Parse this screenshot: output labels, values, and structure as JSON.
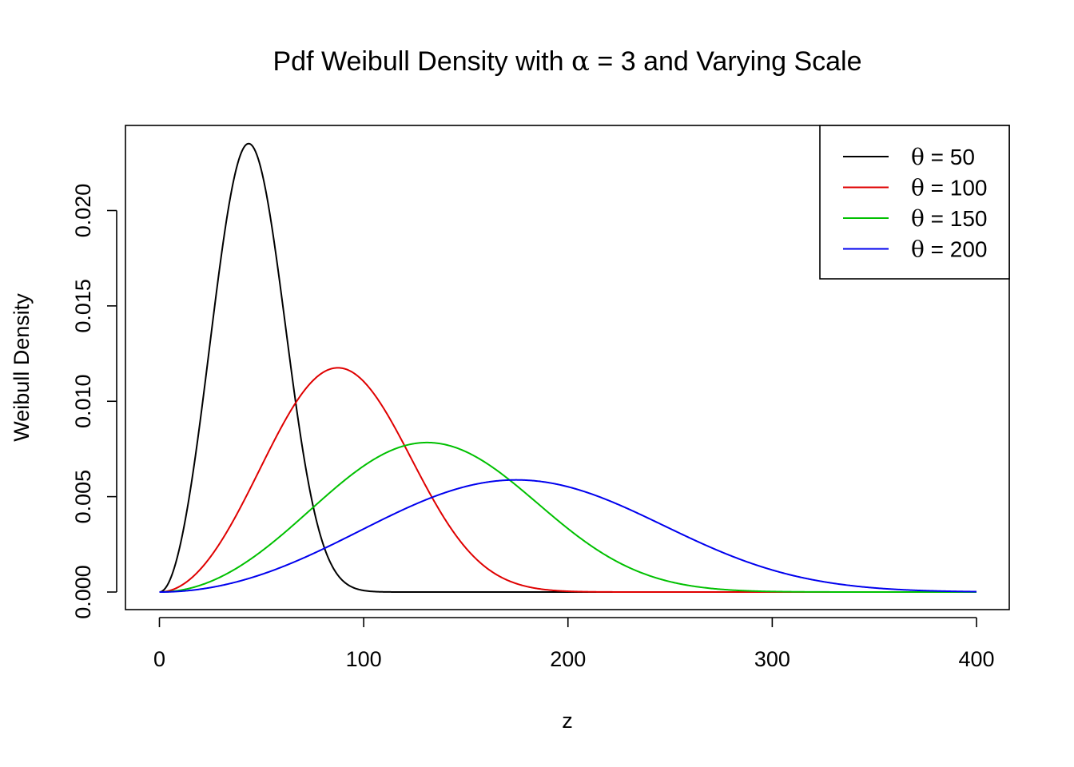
{
  "chart_data": {
    "type": "line",
    "title_prefix": "Pdf Weibull Density with ",
    "title_symbol": "α",
    "title_suffix": " = 3 and Varying Scale",
    "xlabel": "z",
    "ylabel": "Weibull Density",
    "xlim": [
      0,
      400
    ],
    "ylim": [
      0,
      0.0235
    ],
    "x_ticks": [
      0,
      100,
      200,
      300,
      400
    ],
    "x_tick_labels": [
      "0",
      "100",
      "200",
      "300",
      "400"
    ],
    "y_ticks": [
      0,
      0.005,
      0.01,
      0.015,
      0.02
    ],
    "y_tick_labels": [
      "0.000",
      "0.005",
      "0.010",
      "0.015",
      "0.020"
    ],
    "grid": false,
    "legend_position": "top-right",
    "shape_alpha": 3,
    "x_range": [
      0,
      400
    ],
    "series": [
      {
        "symbol": "θ",
        "label_suffix": " = 50",
        "scale": 50,
        "color": "#000000"
      },
      {
        "symbol": "θ",
        "label_suffix": " = 100",
        "scale": 100,
        "color": "#df0000"
      },
      {
        "symbol": "θ",
        "label_suffix": " = 150",
        "scale": 150,
        "color": "#00c000"
      },
      {
        "symbol": "θ",
        "label_suffix": " = 200",
        "scale": 200,
        "color": "#0000ee"
      }
    ]
  }
}
